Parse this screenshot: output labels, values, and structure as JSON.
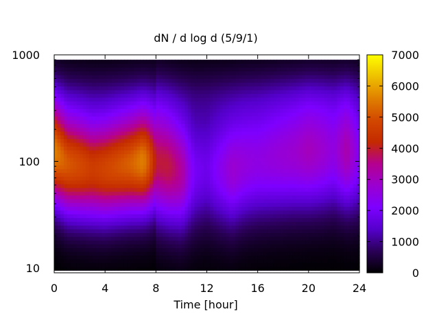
{
  "chart_data": {
    "type": "heatmap",
    "title": "dN / d log d (5/9/1)",
    "xlabel": "Time [hour]",
    "ylabel": "",
    "x_range": [
      0,
      24
    ],
    "x_ticks": [
      0,
      4,
      8,
      12,
      16,
      20,
      24
    ],
    "x_tick_labels": [
      "0",
      "4",
      "8",
      "12",
      "16",
      "20",
      "24"
    ],
    "y_scale": "log",
    "y_range": [
      9,
      1000
    ],
    "y_ticks": [
      10,
      100,
      1000
    ],
    "y_tick_labels": [
      "10",
      "100",
      "1000"
    ],
    "colorbar": {
      "range": [
        0,
        7000
      ],
      "ticks": [
        0,
        1000,
        2000,
        3000,
        4000,
        5000,
        6000,
        7000
      ],
      "tick_labels": [
        "0",
        "1000",
        "2000",
        "3000",
        "4000",
        "5000",
        "6000",
        "7000"
      ],
      "palette": [
        "#000000",
        "#2a0057",
        "#5500cc",
        "#7d00ff",
        "#9a00d0",
        "#b50090",
        "#c42a00",
        "#d24800",
        "#e08000",
        "#eec000",
        "#ffff00"
      ]
    },
    "time_hours": [
      0,
      1,
      2,
      3,
      4,
      5,
      6,
      7,
      7.5,
      8,
      9,
      10,
      11,
      12,
      13,
      14,
      15,
      16,
      17,
      18,
      19,
      20,
      21,
      22,
      23,
      24
    ],
    "peak_diameter": [
      120,
      95,
      90,
      85,
      85,
      90,
      95,
      100,
      100,
      100,
      90,
      80,
      80,
      85,
      85,
      85,
      95,
      100,
      105,
      110,
      115,
      120,
      120,
      120,
      120,
      110
    ],
    "peak_value": [
      5600,
      5100,
      4900,
      4600,
      4800,
      5000,
      5200,
      5600,
      5000,
      3900,
      3900,
      3400,
      2000,
      1800,
      2300,
      2800,
      2600,
      2500,
      2600,
      2700,
      2800,
      3000,
      2800,
      2500,
      3200,
      2200
    ],
    "grid": false
  }
}
